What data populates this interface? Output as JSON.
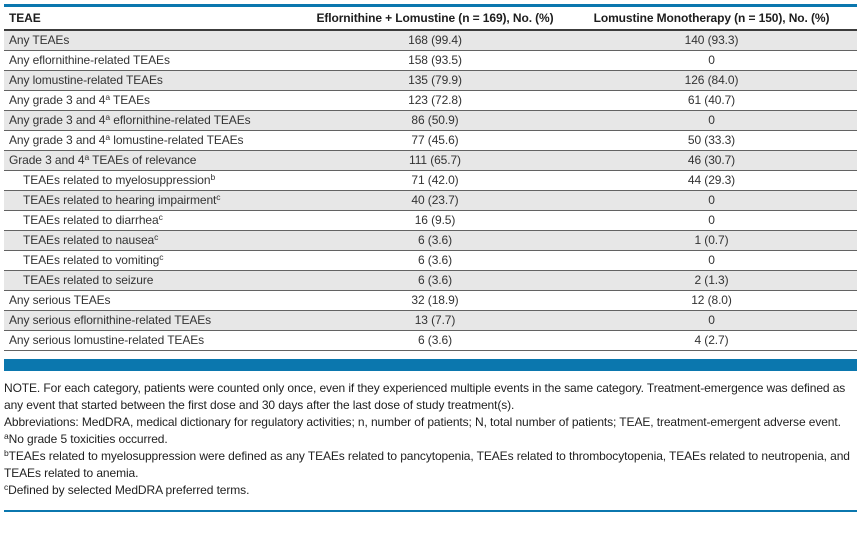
{
  "colors": {
    "accent_blue": "#0b77ae",
    "zebra_row_gray": "#e7e7e7",
    "row_border_gray": "#636363"
  },
  "table": {
    "columns": {
      "c1": "TEAE",
      "c2": "Eflornithine + Lomustine (n = 169), No. (%)",
      "c3": "Lomustine Monotherapy (n = 150), No. (%)"
    },
    "rows": [
      {
        "pre": "Any TEAEs",
        "sup": "",
        "post": "",
        "v1": "168 (99.4)",
        "v2": "140 (93.3)"
      },
      {
        "pre": "Any eflornithine-related TEAEs",
        "sup": "",
        "post": "",
        "v1": "158 (93.5)",
        "v2": "0"
      },
      {
        "pre": "Any lomustine-related TEAEs",
        "sup": "",
        "post": "",
        "v1": "135 (79.9)",
        "v2": "126 (84.0)"
      },
      {
        "pre": "Any grade 3 and 4",
        "sup": "a",
        "post": " TEAEs",
        "v1": "123 (72.8)",
        "v2": "61 (40.7)"
      },
      {
        "pre": "Any grade 3 and 4",
        "sup": "a",
        "post": " eflornithine-related TEAEs",
        "v1": "86 (50.9)",
        "v2": "0"
      },
      {
        "pre": "Any grade 3 and 4",
        "sup": "a",
        "post": " lomustine-related TEAEs",
        "v1": "77 (45.6)",
        "v2": "50 (33.3)"
      },
      {
        "pre": "Grade 3 and 4",
        "sup": "a",
        "post": " TEAEs of relevance",
        "v1": "111 (65.7)",
        "v2": "46 (30.7)"
      },
      {
        "pre": "TEAEs related to myelosuppression",
        "sup": "b",
        "post": "",
        "v1": "71 (42.0)",
        "v2": "44 (29.3)"
      },
      {
        "pre": "TEAEs related to hearing impairment",
        "sup": "c",
        "post": "",
        "v1": "40 (23.7)",
        "v2": "0"
      },
      {
        "pre": "TEAEs related to diarrhea",
        "sup": "c",
        "post": "",
        "v1": "16 (9.5)",
        "v2": "0"
      },
      {
        "pre": "TEAEs related to nausea",
        "sup": "c",
        "post": "",
        "v1": "6 (3.6)",
        "v2": "1 (0.7)"
      },
      {
        "pre": "TEAEs related to vomiting",
        "sup": "c",
        "post": "",
        "v1": "6 (3.6)",
        "v2": "0"
      },
      {
        "pre": "TEAEs related to seizure",
        "sup": "",
        "post": "",
        "v1": "6 (3.6)",
        "v2": "2 (1.3)"
      },
      {
        "pre": "Any serious TEAEs",
        "sup": "",
        "post": "",
        "v1": "32 (18.9)",
        "v2": "12 (8.0)"
      },
      {
        "pre": "Any serious eflornithine-related TEAEs",
        "sup": "",
        "post": "",
        "v1": "13 (7.7)",
        "v2": "0"
      },
      {
        "pre": "Any serious lomustine-related TEAEs",
        "sup": "",
        "post": "",
        "v1": "6 (3.6)",
        "v2": "4 (2.7)"
      }
    ]
  },
  "footnotes": [
    {
      "sup": "",
      "text": "NOTE. For each category, patients were counted only once, even if they experienced multiple events in the same category. Treatment-emergence was defined as any event that started between the first dose and 30 days after the last dose of study treatment(s)."
    },
    {
      "sup": "",
      "text": "Abbreviations: MedDRA, medical dictionary for regulatory activities; n, number of patients; N, total number of patients; TEAE, treatment-emergent adverse event."
    },
    {
      "sup": "a",
      "text": "No grade 5 toxicities occurred."
    },
    {
      "sup": "b",
      "text": "TEAEs related to myelosuppression were defined as any TEAEs related to pancytopenia, TEAEs related to thrombocytopenia, TEAEs related to neutropenia, and TEAEs related to anemia."
    },
    {
      "sup": "c",
      "text": "Defined by selected MedDRA preferred terms."
    }
  ]
}
